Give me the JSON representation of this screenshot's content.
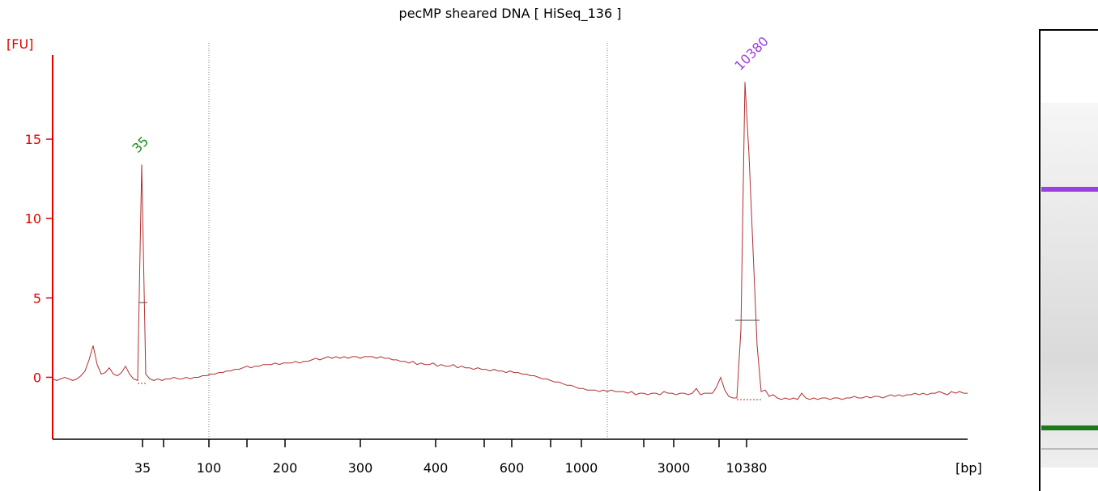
{
  "chart_data": {
    "type": "line",
    "title": "pecMP sheared DNA  [ HiSeq_136 ]",
    "ylabel": "[FU]",
    "xlabel": "[bp]",
    "ylim": [
      -3.9,
      20.3
    ],
    "yticks": [
      0,
      5,
      10,
      15
    ],
    "xtick_labels": [
      "35",
      null,
      "100",
      null,
      "200",
      "300",
      "400",
      null,
      "600",
      null,
      "1000",
      null,
      "3000",
      null,
      "10380"
    ],
    "annotations": [
      {
        "text": "35",
        "color": "#1a8a1a"
      },
      {
        "text": "10380",
        "color": "#9b3fe0"
      }
    ],
    "series": [
      {
        "color": "#b03030",
        "values": [
          -0.1,
          -0.2,
          -0.1,
          0,
          -0.1,
          -0.2,
          -0.1,
          0.1,
          0.4,
          1.1,
          2.0,
          0.8,
          0.2,
          0.3,
          0.6,
          0.2,
          0.1,
          0.3,
          0.7,
          0.2,
          -0.1,
          -0.2,
          13.4,
          0.2,
          -0.1,
          -0.2,
          -0.1,
          -0.2,
          -0.1,
          -0.1,
          0,
          -0.1,
          -0.1,
          0,
          -0.1,
          0,
          0,
          0.1,
          0.1,
          0.2,
          0.2,
          0.3,
          0.3,
          0.4,
          0.4,
          0.5,
          0.5,
          0.6,
          0.7,
          0.6,
          0.7,
          0.7,
          0.8,
          0.8,
          0.8,
          0.9,
          0.8,
          0.9,
          0.9,
          0.9,
          1.0,
          0.9,
          1.0,
          1.0,
          1.1,
          1.2,
          1.1,
          1.2,
          1.3,
          1.2,
          1.3,
          1.2,
          1.3,
          1.2,
          1.3,
          1.3,
          1.2,
          1.3,
          1.3,
          1.3,
          1.2,
          1.3,
          1.2,
          1.2,
          1.1,
          1.1,
          1.0,
          1.0,
          0.9,
          1.0,
          0.8,
          0.9,
          0.8,
          0.8,
          0.9,
          0.7,
          0.8,
          0.7,
          0.7,
          0.8,
          0.6,
          0.7,
          0.6,
          0.6,
          0.5,
          0.6,
          0.5,
          0.5,
          0.4,
          0.5,
          0.4,
          0.4,
          0.3,
          0.4,
          0.3,
          0.3,
          0.2,
          0.2,
          0.1,
          0.1,
          0.0,
          -0.1,
          -0.1,
          -0.2,
          -0.3,
          -0.3,
          -0.4,
          -0.5,
          -0.5,
          -0.6,
          -0.7,
          -0.7,
          -0.8,
          -0.8,
          -0.8,
          -0.9,
          -0.8,
          -0.9,
          -0.8,
          -0.9,
          -0.9,
          -0.9,
          -1.0,
          -0.9,
          -1.1,
          -1.0,
          -1.0,
          -1.1,
          -1.0,
          -1.0,
          -1.1,
          -0.9,
          -1.0,
          -1.0,
          -1.1,
          -1.0,
          -1.0,
          -1.1,
          -1.0,
          -0.7,
          -1.1,
          -1.0,
          -1.0,
          -1.0,
          -0.6,
          0.0,
          -0.8,
          -1.2,
          -1.3,
          -1.3,
          3.0,
          18.6,
          14.0,
          8.0,
          2.0,
          -0.9,
          -0.8,
          -1.2,
          -1.1,
          -1.3,
          -1.4,
          -1.3,
          -1.4,
          -1.3,
          -1.4,
          -1.0,
          -1.3,
          -1.4,
          -1.3,
          -1.4,
          -1.3,
          -1.3,
          -1.4,
          -1.3,
          -1.3,
          -1.4,
          -1.3,
          -1.3,
          -1.2,
          -1.3,
          -1.3,
          -1.2,
          -1.3,
          -1.2,
          -1.2,
          -1.3,
          -1.2,
          -1.1,
          -1.2,
          -1.1,
          -1.2,
          -1.1,
          -1.1,
          -1.0,
          -1.1,
          -1.0,
          -1.1,
          -1.0,
          -1.0,
          -0.9,
          -1.0,
          -1.1,
          -0.9,
          -1.0,
          -0.9,
          -1.0,
          -1.0
        ]
      }
    ]
  }
}
